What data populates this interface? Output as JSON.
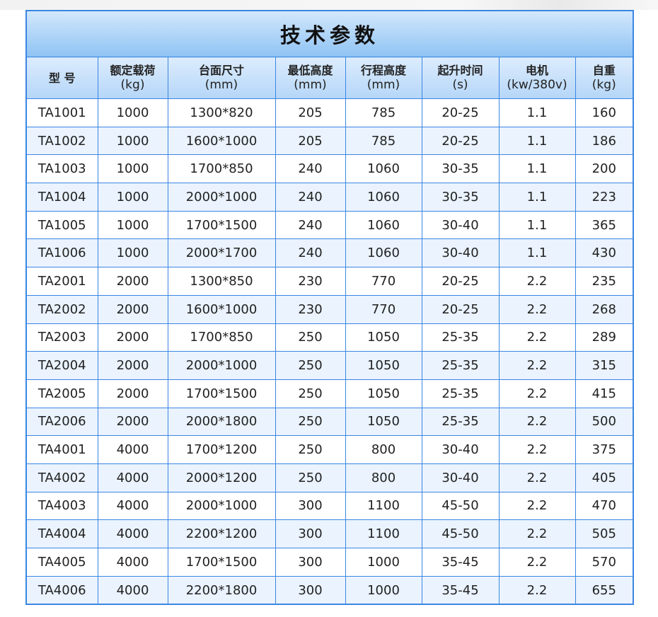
{
  "title": "技术参数",
  "headers": [
    {
      "label": "型 号",
      "unit": ""
    },
    {
      "label": "额定载荷",
      "unit": "(kg)"
    },
    {
      "label": "台面尺寸",
      "unit": "(mm)"
    },
    {
      "label": "最低高度",
      "unit": "(mm)"
    },
    {
      "label": "行程高度",
      "unit": "(mm)"
    },
    {
      "label": "起升时间",
      "unit": "(s)"
    },
    {
      "label": "电机",
      "unit": "(kw/380v)"
    },
    {
      "label": "自重",
      "unit": "(kg)"
    }
  ],
  "rows": [
    [
      "TA1001",
      "1000",
      "1300*820",
      "205",
      "785",
      "20-25",
      "1.1",
      "160"
    ],
    [
      "TA1002",
      "1000",
      "1600*1000",
      "205",
      "785",
      "20-25",
      "1.1",
      "186"
    ],
    [
      "TA1003",
      "1000",
      "1700*850",
      "240",
      "1060",
      "30-35",
      "1.1",
      "200"
    ],
    [
      "TA1004",
      "1000",
      "2000*1000",
      "240",
      "1060",
      "30-35",
      "1.1",
      "223"
    ],
    [
      "TA1005",
      "1000",
      "1700*1500",
      "240",
      "1060",
      "30-40",
      "1.1",
      "365"
    ],
    [
      "TA1006",
      "1000",
      "2000*1700",
      "240",
      "1060",
      "30-40",
      "1.1",
      "430"
    ],
    [
      "TA2001",
      "2000",
      "1300*850",
      "230",
      "770",
      "20-25",
      "2.2",
      "235"
    ],
    [
      "TA2002",
      "2000",
      "1600*1000",
      "230",
      "770",
      "20-25",
      "2.2",
      "268"
    ],
    [
      "TA2003",
      "2000",
      "1700*850",
      "250",
      "1050",
      "25-35",
      "2.2",
      "289"
    ],
    [
      "TA2004",
      "2000",
      "2000*1000",
      "250",
      "1050",
      "25-35",
      "2.2",
      "315"
    ],
    [
      "TA2005",
      "2000",
      "1700*1500",
      "250",
      "1050",
      "25-35",
      "2.2",
      "415"
    ],
    [
      "TA2006",
      "2000",
      "2000*1800",
      "250",
      "1050",
      "25-35",
      "2.2",
      "500"
    ],
    [
      "TA4001",
      "4000",
      "1700*1200",
      "250",
      "800",
      "30-40",
      "2.2",
      "375"
    ],
    [
      "TA4002",
      "4000",
      "2000*1200",
      "250",
      "800",
      "30-40",
      "2.2",
      "405"
    ],
    [
      "TA4003",
      "4000",
      "2000*1000",
      "300",
      "1100",
      "45-50",
      "2.2",
      "470"
    ],
    [
      "TA4004",
      "4000",
      "2200*1200",
      "300",
      "1100",
      "45-50",
      "2.2",
      "505"
    ],
    [
      "TA4005",
      "4000",
      "1700*1500",
      "300",
      "1000",
      "35-45",
      "2.2",
      "570"
    ],
    [
      "TA4006",
      "4000",
      "2200*1800",
      "300",
      "1000",
      "35-45",
      "2.2",
      "655"
    ]
  ]
}
